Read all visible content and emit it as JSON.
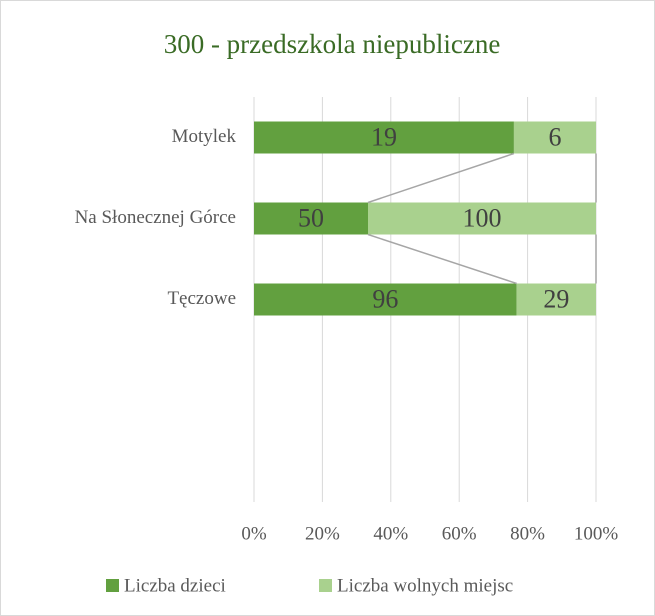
{
  "chart_data": {
    "type": "bar_stacked_100_horizontal",
    "title": "300 - przedszkola  niepubliczne",
    "categories": [
      "Motylek",
      "Na Słonecznej Górce",
      "Tęczowe",
      null,
      null
    ],
    "series": [
      {
        "name": "Liczba dzieci",
        "color": "#62a03f",
        "values": [
          19,
          50,
          96,
          null,
          null
        ]
      },
      {
        "name": "Liczba wolnych miejsc",
        "color": "#a9d18e",
        "values": [
          6,
          100,
          29,
          null,
          null
        ]
      }
    ],
    "xlim": [
      0,
      100
    ],
    "xticks": [
      {
        "value": 0,
        "label": "0%"
      },
      {
        "value": 20,
        "label": "20%"
      },
      {
        "value": 40,
        "label": "40%"
      },
      {
        "value": 60,
        "label": "60%"
      },
      {
        "value": 80,
        "label": "80%"
      },
      {
        "value": 100,
        "label": "100%"
      }
    ],
    "grid": true,
    "legend": "bottom",
    "series_lines": true
  }
}
